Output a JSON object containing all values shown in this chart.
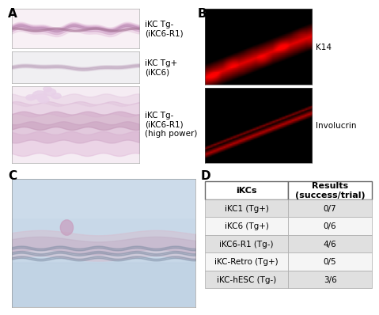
{
  "panel_A_label": "A",
  "panel_B_label": "B",
  "panel_C_label": "C",
  "panel_D_label": "D",
  "fig_bg": "#ffffff",
  "panel_label_fontsize": 11,
  "side_label_fontsize": 7.5,
  "table_fontsize": 7.5,
  "header_fontsize": 8,
  "panel_A_labels": [
    "iKC Tg-\n(iKC6-R1)",
    "iKC Tg+\n(iKC6)",
    "iKC Tg-\n(iKC6-R1)\n(high power)"
  ],
  "panel_B_labels": [
    "K14",
    "Involucrin"
  ],
  "table_header": [
    "iKCs",
    "Results\n(success/trial)"
  ],
  "table_rows": [
    [
      "iKC1 (Tg+)",
      "0/7"
    ],
    [
      "iKC6 (Tg+)",
      "0/6"
    ],
    [
      "iKC6-R1 (Tg-)",
      "4/6"
    ],
    [
      "iKC-Retro (Tg+)",
      "0/5"
    ],
    [
      "iKC-hESC (Tg-)",
      "3/6"
    ]
  ],
  "table_row_colors": [
    "#e0e0e0",
    "#f5f5f5",
    "#e0e0e0",
    "#f5f5f5",
    "#e0e0e0"
  ],
  "panelA_img1_bg": "#f8f0f5",
  "panelA_img2_bg": "#f0eff2",
  "panelA_img3_bg": "#f5ecf3",
  "panelC_bg": "#c8d8e8",
  "panelB_bg": "#000000"
}
